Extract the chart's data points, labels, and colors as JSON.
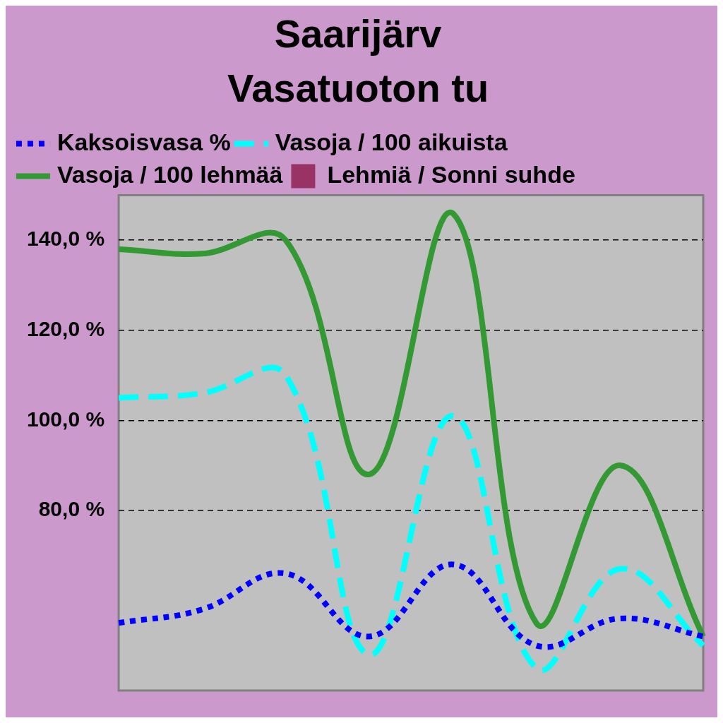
{
  "chart_data": {
    "type": "line",
    "title": "Saarijärv",
    "subtitle": "Vasatuoton tu",
    "categories": [
      null,
      null,
      null,
      null,
      null,
      null,
      null,
      null
    ],
    "series": [
      {
        "name": "Kaksoisvasa %",
        "color": "#0000ff",
        "line_style": "dotted",
        "marker": "none",
        "values": [
          55,
          58,
          66,
          52,
          68,
          50,
          56,
          52
        ]
      },
      {
        "name": "Vasoja / 100 aikuista",
        "color": "#00ffff",
        "line_style": "dashed",
        "marker": "none",
        "values": [
          105,
          106,
          110,
          48,
          101,
          45,
          67,
          50
        ]
      },
      {
        "name": "Vasoja / 100 lehmää",
        "color": "#339933",
        "line_style": "solid",
        "marker": "none",
        "values": [
          138,
          137,
          140,
          88,
          146,
          55,
          90,
          52
        ]
      },
      {
        "name": "Lehmiä / Sonni suhde",
        "color": "#993366",
        "type": "scatter",
        "marker": "square",
        "values": [
          null,
          null,
          null,
          null,
          null,
          null,
          null,
          null
        ]
      }
    ],
    "ylim": [
      40,
      150
    ],
    "yticks": [
      {
        "value": 80,
        "label": "80,0 %"
      },
      {
        "value": 100,
        "label": "100,0 %"
      },
      {
        "value": 120,
        "label": "120,0 %"
      },
      {
        "value": 140,
        "label": "140,0 %"
      }
    ],
    "grid": "y",
    "legend": "top left",
    "tick_labels": "y"
  }
}
